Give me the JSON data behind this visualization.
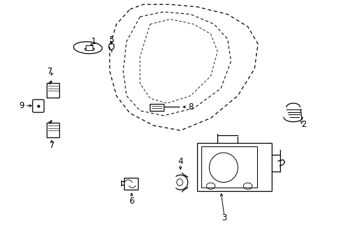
{
  "background_color": "#ffffff",
  "line_color": "#000000",
  "figsize": [
    4.89,
    3.6
  ],
  "dpi": 100,
  "door_outer": {
    "x": [
      0.38,
      0.42,
      0.5,
      0.58,
      0.67,
      0.73,
      0.76,
      0.75,
      0.7,
      0.62,
      0.53,
      0.45,
      0.38,
      0.34,
      0.32,
      0.32,
      0.34,
      0.38
    ],
    "y": [
      0.97,
      0.99,
      0.99,
      0.98,
      0.95,
      0.9,
      0.83,
      0.73,
      0.62,
      0.53,
      0.48,
      0.5,
      0.55,
      0.62,
      0.72,
      0.82,
      0.91,
      0.97
    ]
  },
  "door_inner1": {
    "x": [
      0.41,
      0.48,
      0.56,
      0.63,
      0.67,
      0.68,
      0.65,
      0.57,
      0.48,
      0.41,
      0.37,
      0.36,
      0.37,
      0.41
    ],
    "y": [
      0.94,
      0.96,
      0.95,
      0.91,
      0.85,
      0.76,
      0.65,
      0.57,
      0.54,
      0.56,
      0.62,
      0.72,
      0.84,
      0.94
    ]
  },
  "door_inner2": {
    "x": [
      0.44,
      0.5,
      0.57,
      0.62,
      0.64,
      0.62,
      0.56,
      0.49,
      0.44,
      0.41,
      0.41,
      0.44
    ],
    "y": [
      0.91,
      0.93,
      0.91,
      0.87,
      0.8,
      0.7,
      0.62,
      0.59,
      0.61,
      0.67,
      0.78,
      0.91
    ]
  }
}
